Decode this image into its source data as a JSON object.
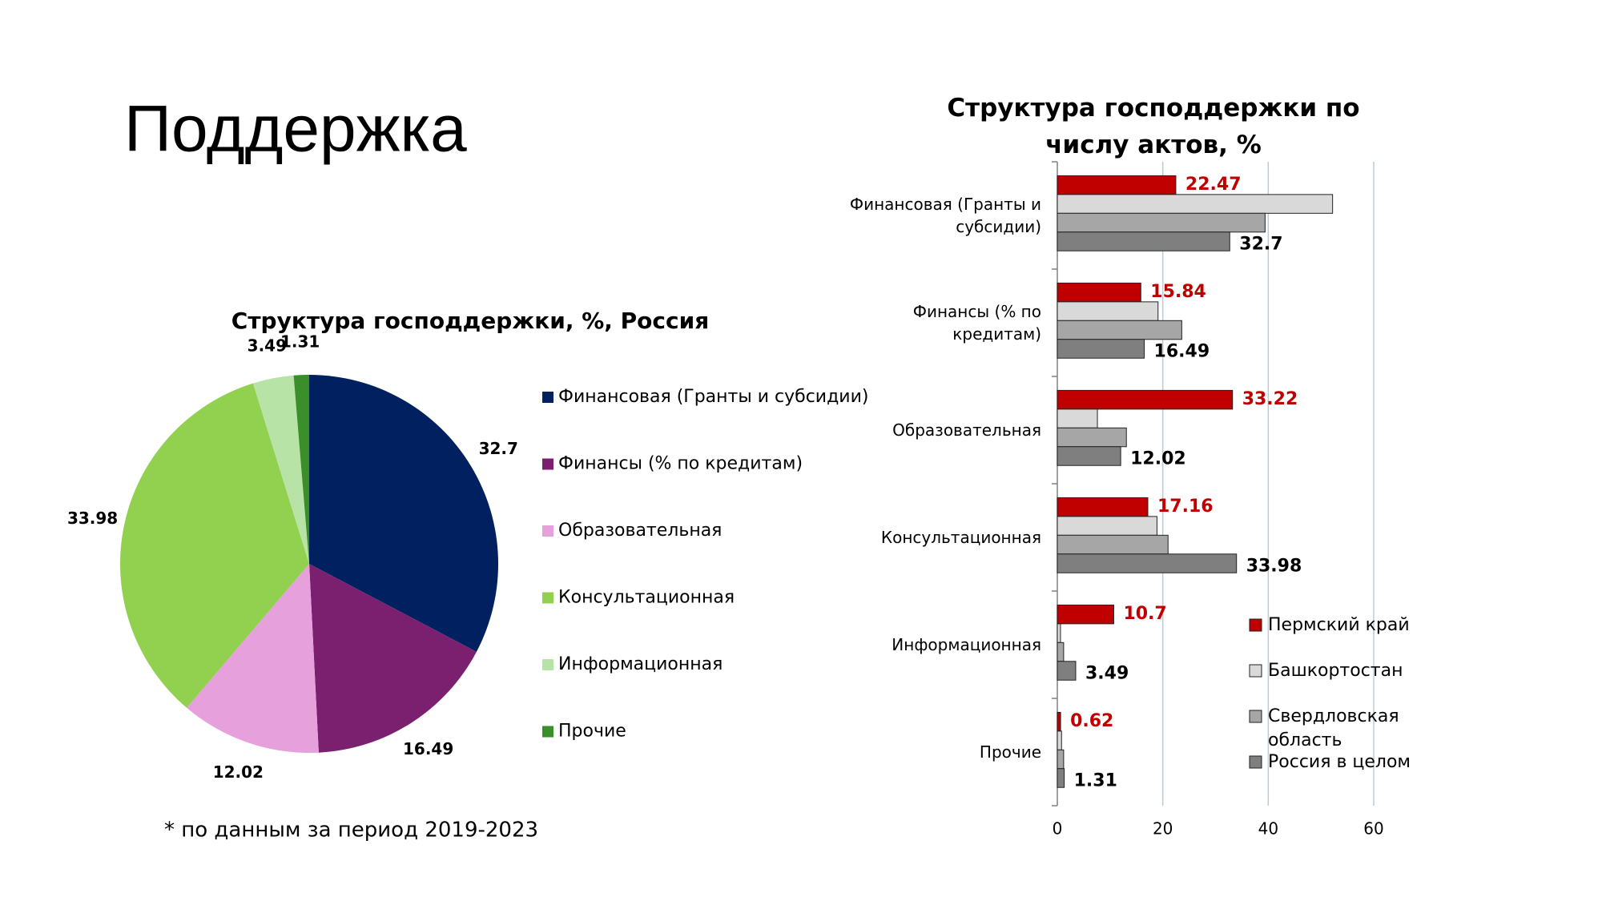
{
  "title": "Поддержка",
  "footnote": "* по данным за период 2019-2023",
  "chart_data": [
    {
      "type": "pie",
      "title": "Структура господдержки, %, Россия",
      "categories": [
        "Финансовая (Гранты и субсидии)",
        "Финансы (% по кредитам)",
        "Образовательная",
        "Консультационная",
        "Информационная",
        "Прочие"
      ],
      "values": [
        32.7,
        16.49,
        12.02,
        33.98,
        3.49,
        1.31
      ],
      "colors": [
        "#002060",
        "#7b1f6f",
        "#e6a0dc",
        "#92d050",
        "#b8e3a6",
        "#3a8f2a"
      ],
      "legend": "right"
    },
    {
      "type": "bar",
      "orientation": "horizontal",
      "title": "Структура господдержки по числу актов, %",
      "categories": [
        "Финансовая (Гранты и субсидии)",
        "Финансы (% по кредитам)",
        "Образовательная",
        "Консультационная",
        "Информационная",
        "Прочие"
      ],
      "series": [
        {
          "name": "Пермский край",
          "color": "#c00000",
          "values": [
            22.47,
            15.84,
            33.22,
            17.16,
            10.7,
            0.62
          ],
          "labels": true,
          "label_color": "#c00000"
        },
        {
          "name": "Башкортостан",
          "color": "#d9d9d9",
          "values": [
            52.2,
            19.1,
            7.6,
            18.9,
            0.6,
            0.8
          ],
          "labels": false
        },
        {
          "name": "Свердловская область",
          "color": "#a6a6a6",
          "values": [
            39.4,
            23.6,
            13.1,
            21.0,
            1.2,
            1.2
          ],
          "labels": false
        },
        {
          "name": "Россия в целом",
          "color": "#7f7f7f",
          "values": [
            32.7,
            16.49,
            12.02,
            33.98,
            3.49,
            1.31
          ],
          "labels": true,
          "label_color": "#000000"
        }
      ],
      "xlim": [
        0,
        60
      ],
      "xticks": [
        0,
        20,
        40,
        60
      ],
      "grid": true,
      "legend": "right"
    }
  ]
}
